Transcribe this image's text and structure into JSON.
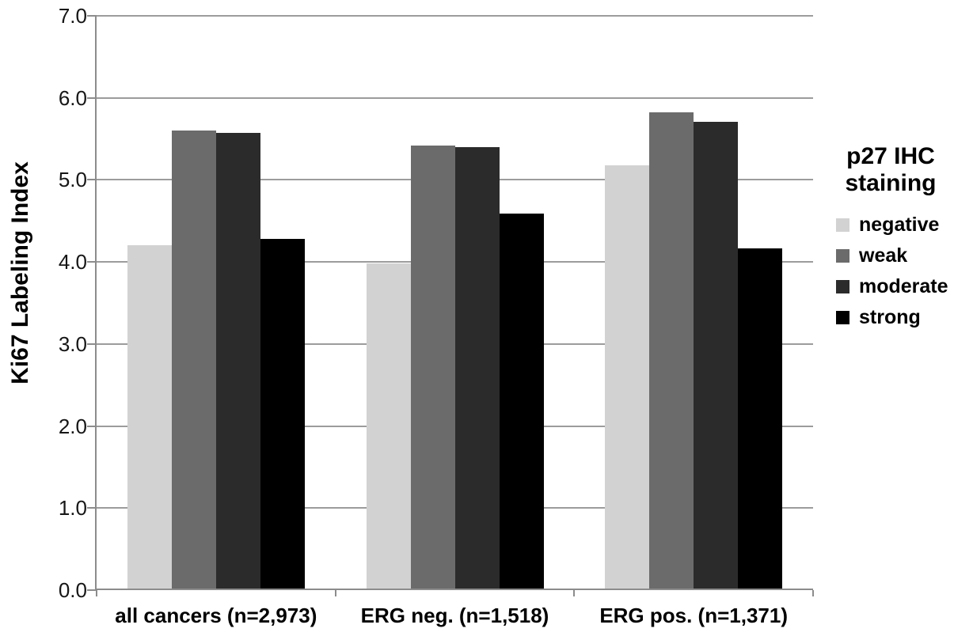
{
  "chart_data": {
    "type": "bar",
    "title": "",
    "ylabel": "Ki67 Labeling Index",
    "xlabel": "",
    "ylim": [
      0,
      7
    ],
    "y_ticks": [
      "0.0",
      "1.0",
      "2.0",
      "3.0",
      "4.0",
      "5.0",
      "6.0",
      "7.0"
    ],
    "grid": true,
    "legend_position": "right",
    "categories": [
      "all cancers (n=2,973)",
      "ERG neg. (n=1,518)",
      "ERG pos. (n=1,371)"
    ],
    "series": [
      {
        "name": "negative",
        "color": "#d2d2d2",
        "values": [
          4.2,
          3.98,
          5.18
        ]
      },
      {
        "name": "weak",
        "color": "#6b6b6b",
        "values": [
          5.6,
          5.42,
          5.82
        ]
      },
      {
        "name": "moderate",
        "color": "#2b2b2b",
        "values": [
          5.57,
          5.4,
          5.71
        ]
      },
      {
        "name": "strong",
        "color": "#000000",
        "values": [
          4.28,
          4.59,
          4.17
        ]
      }
    ],
    "legend": {
      "title_lines": [
        "p27 IHC",
        "staining"
      ],
      "items": [
        {
          "label": "negative",
          "color": "#d2d2d2"
        },
        {
          "label": "weak",
          "color": "#6b6b6b"
        },
        {
          "label": "moderate",
          "color": "#2b2b2b"
        },
        {
          "label": "strong",
          "color": "#000000"
        }
      ]
    },
    "colors": {
      "gridline": "#9c9c9c",
      "axis": "#8c8c8c",
      "text": "#000000",
      "background": "#ffffff"
    }
  }
}
